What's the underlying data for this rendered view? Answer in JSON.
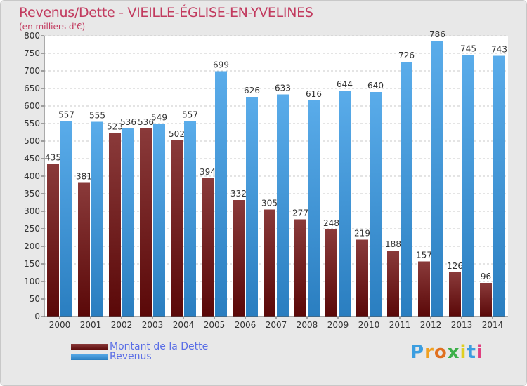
{
  "title": "Revenus/Dette - VIEILLE-ÉGLISE-EN-YVELINES",
  "subtitle": "(en milliers d'€)",
  "colors": {
    "debt_dark": "#5a0808",
    "debt_light": "#8a3a3a",
    "revenue_dark": "#2a7ec0",
    "revenue_light": "#5aacea",
    "title": "#c23b5f",
    "legend_text": "#5a6ee6"
  },
  "legend": {
    "debt_label": "Montant de la Dette",
    "revenue_label": "Revenus"
  },
  "logo": {
    "letters": [
      "P",
      "r",
      "o",
      "x",
      "i",
      "t",
      "i"
    ],
    "colors": [
      "#3c9ee0",
      "#f0a020",
      "#e07020",
      "#3cb048",
      "#e0d020",
      "#3c9ee0",
      "#e04080"
    ]
  },
  "chart_data": {
    "type": "bar",
    "title": "Revenus/Dette - VIEILLE-ÉGLISE-EN-YVELINES",
    "ylabel": "(en milliers d'€)",
    "ylim": [
      0,
      800
    ],
    "yticks": [
      0,
      50,
      100,
      150,
      200,
      250,
      300,
      350,
      400,
      450,
      500,
      550,
      600,
      650,
      700,
      750,
      800
    ],
    "grid": true,
    "legend_position": "bottom-left",
    "categories": [
      "2000",
      "2001",
      "2002",
      "2003",
      "2004",
      "2005",
      "2006",
      "2007",
      "2008",
      "2009",
      "2010",
      "2011",
      "2012",
      "2013",
      "2014"
    ],
    "series": [
      {
        "name": "Montant de la Dette",
        "values": [
          435,
          381,
          523,
          536,
          502,
          394,
          332,
          305,
          277,
          248,
          219,
          188,
          157,
          126,
          96
        ]
      },
      {
        "name": "Revenus",
        "values": [
          557,
          555,
          536,
          549,
          557,
          699,
          626,
          633,
          616,
          644,
          640,
          726,
          786,
          745,
          743
        ]
      }
    ]
  }
}
